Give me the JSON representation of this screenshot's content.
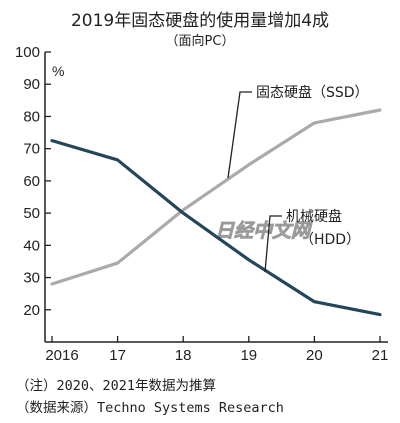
{
  "chart_data": {
    "type": "line",
    "title": "2019年固态硬盘的使用量增加4成",
    "subtitle": "（面向PC）",
    "unit_label": "%",
    "x": [
      "2016",
      "17",
      "18",
      "19",
      "20",
      "21"
    ],
    "ylim": [
      10,
      100
    ],
    "yticks": [
      100,
      90,
      80,
      70,
      60,
      50,
      40,
      30,
      20
    ],
    "grid": false,
    "series": [
      {
        "name": "固态硬盘（SSD）",
        "color": "#aaaaaa",
        "values": [
          28,
          34.5,
          51,
          65,
          78,
          82
        ]
      },
      {
        "name": "机械硬盘（HDD）",
        "color": "#23465a",
        "values": [
          72.5,
          66.5,
          50,
          35.5,
          22.5,
          18.5
        ]
      }
    ],
    "series_labels": {
      "ssd": "固态硬盘（SSD）",
      "hdd_line1": "机械硬盘",
      "hdd_line2": "（HDD）"
    },
    "watermark": "日经中文网",
    "notes": [
      "（注）2020、2021年数据为推算",
      "（数据来源）Techno Systems Research"
    ]
  }
}
